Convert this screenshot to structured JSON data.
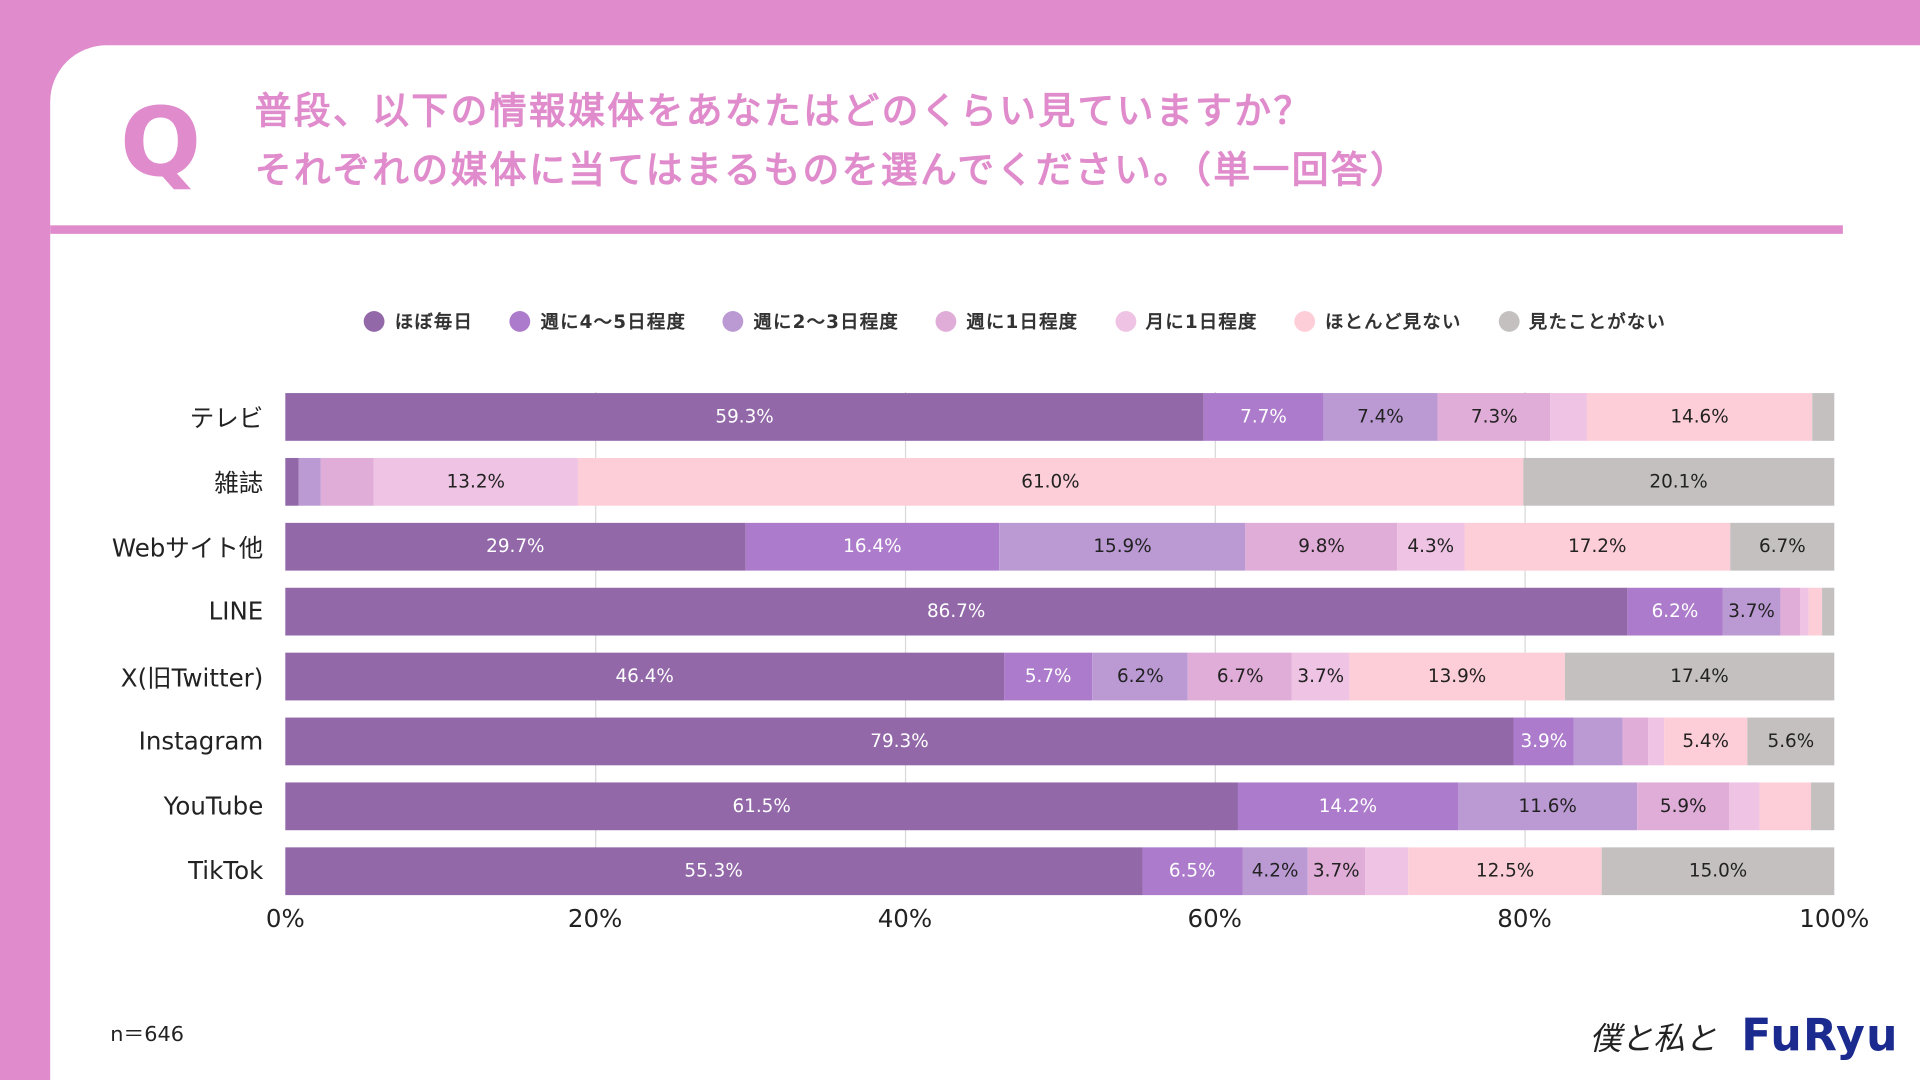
{
  "header": {
    "q_mark": "Q",
    "title_line1": "普段、以下の情報媒体をあなたはどのくらい見ていますか？",
    "title_line2": "それぞれの媒体に当てはまるものを選んでください。（単一回答）"
  },
  "footer": {
    "sample": "n＝646",
    "logo_handwritten": "僕と私と",
    "logo_brand": "FuRyu"
  },
  "chart_data": {
    "type": "bar",
    "orientation": "horizontal",
    "stacked": "100%",
    "title": "",
    "xlim": [
      0,
      100
    ],
    "x_ticks": [
      "0%",
      "20%",
      "40%",
      "60%",
      "80%",
      "100%"
    ],
    "grid": true,
    "legend_position": "top",
    "categories": [
      "テレビ",
      "雑誌",
      "Webサイト他",
      "LINE",
      "X(旧Twitter)",
      "Instagram",
      "YouTube",
      "TikTok"
    ],
    "series": [
      {
        "name": "ほぼ毎日",
        "color": "#9268a8",
        "text_color": "#ffffff",
        "values": [
          59.3,
          0.9,
          29.7,
          86.7,
          46.4,
          79.3,
          61.5,
          55.3
        ]
      },
      {
        "name": "週に4～5日程度",
        "color": "#ad7bcb",
        "text_color": "#ffffff",
        "values": [
          7.7,
          0,
          16.4,
          6.2,
          5.7,
          3.9,
          14.2,
          6.5
        ]
      },
      {
        "name": "週に2～3日程度",
        "color": "#bb9ad4",
        "text_color": "#222222",
        "values": [
          7.4,
          1.4,
          15.9,
          3.7,
          6.2,
          3.1,
          11.6,
          4.2
        ]
      },
      {
        "name": "週に1日程度",
        "color": "#e0acd8",
        "text_color": "#222222",
        "values": [
          7.3,
          3.4,
          9.8,
          1.3,
          6.7,
          1.7,
          5.9,
          3.7
        ]
      },
      {
        "name": "月に1日程度",
        "color": "#efc3e3",
        "text_color": "#222222",
        "values": [
          2.3,
          13.2,
          4.3,
          0.5,
          3.7,
          1.0,
          2.0,
          2.8
        ]
      },
      {
        "name": "ほとんど見ない",
        "color": "#fdced8",
        "text_color": "#222222",
        "values": [
          14.6,
          61.0,
          17.2,
          0.9,
          13.9,
          5.4,
          3.3,
          12.5
        ]
      },
      {
        "name": "見たことがない",
        "color": "#c4c0c0",
        "text_color": "#222222",
        "values": [
          1.4,
          20.1,
          6.7,
          0.8,
          17.4,
          5.6,
          1.5,
          15.0
        ]
      }
    ]
  }
}
